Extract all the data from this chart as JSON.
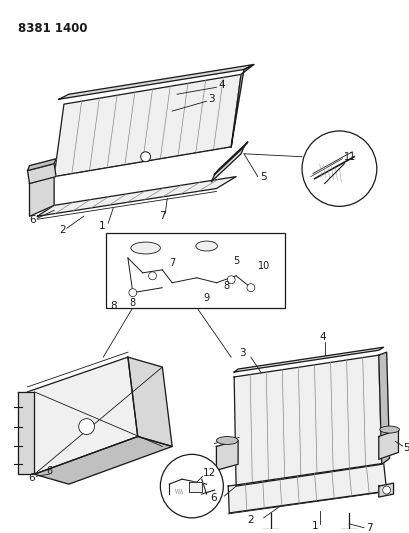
{
  "title": "8381 1400",
  "bg": "#ffffff",
  "lc": "#1a1a1a",
  "lc_light": "#888888",
  "fill_light": "#f0f0f0",
  "fill_mid": "#d8d8d8",
  "fill_dark": "#c0c0c0",
  "fig_w": 4.1,
  "fig_h": 5.33,
  "dpi": 100
}
